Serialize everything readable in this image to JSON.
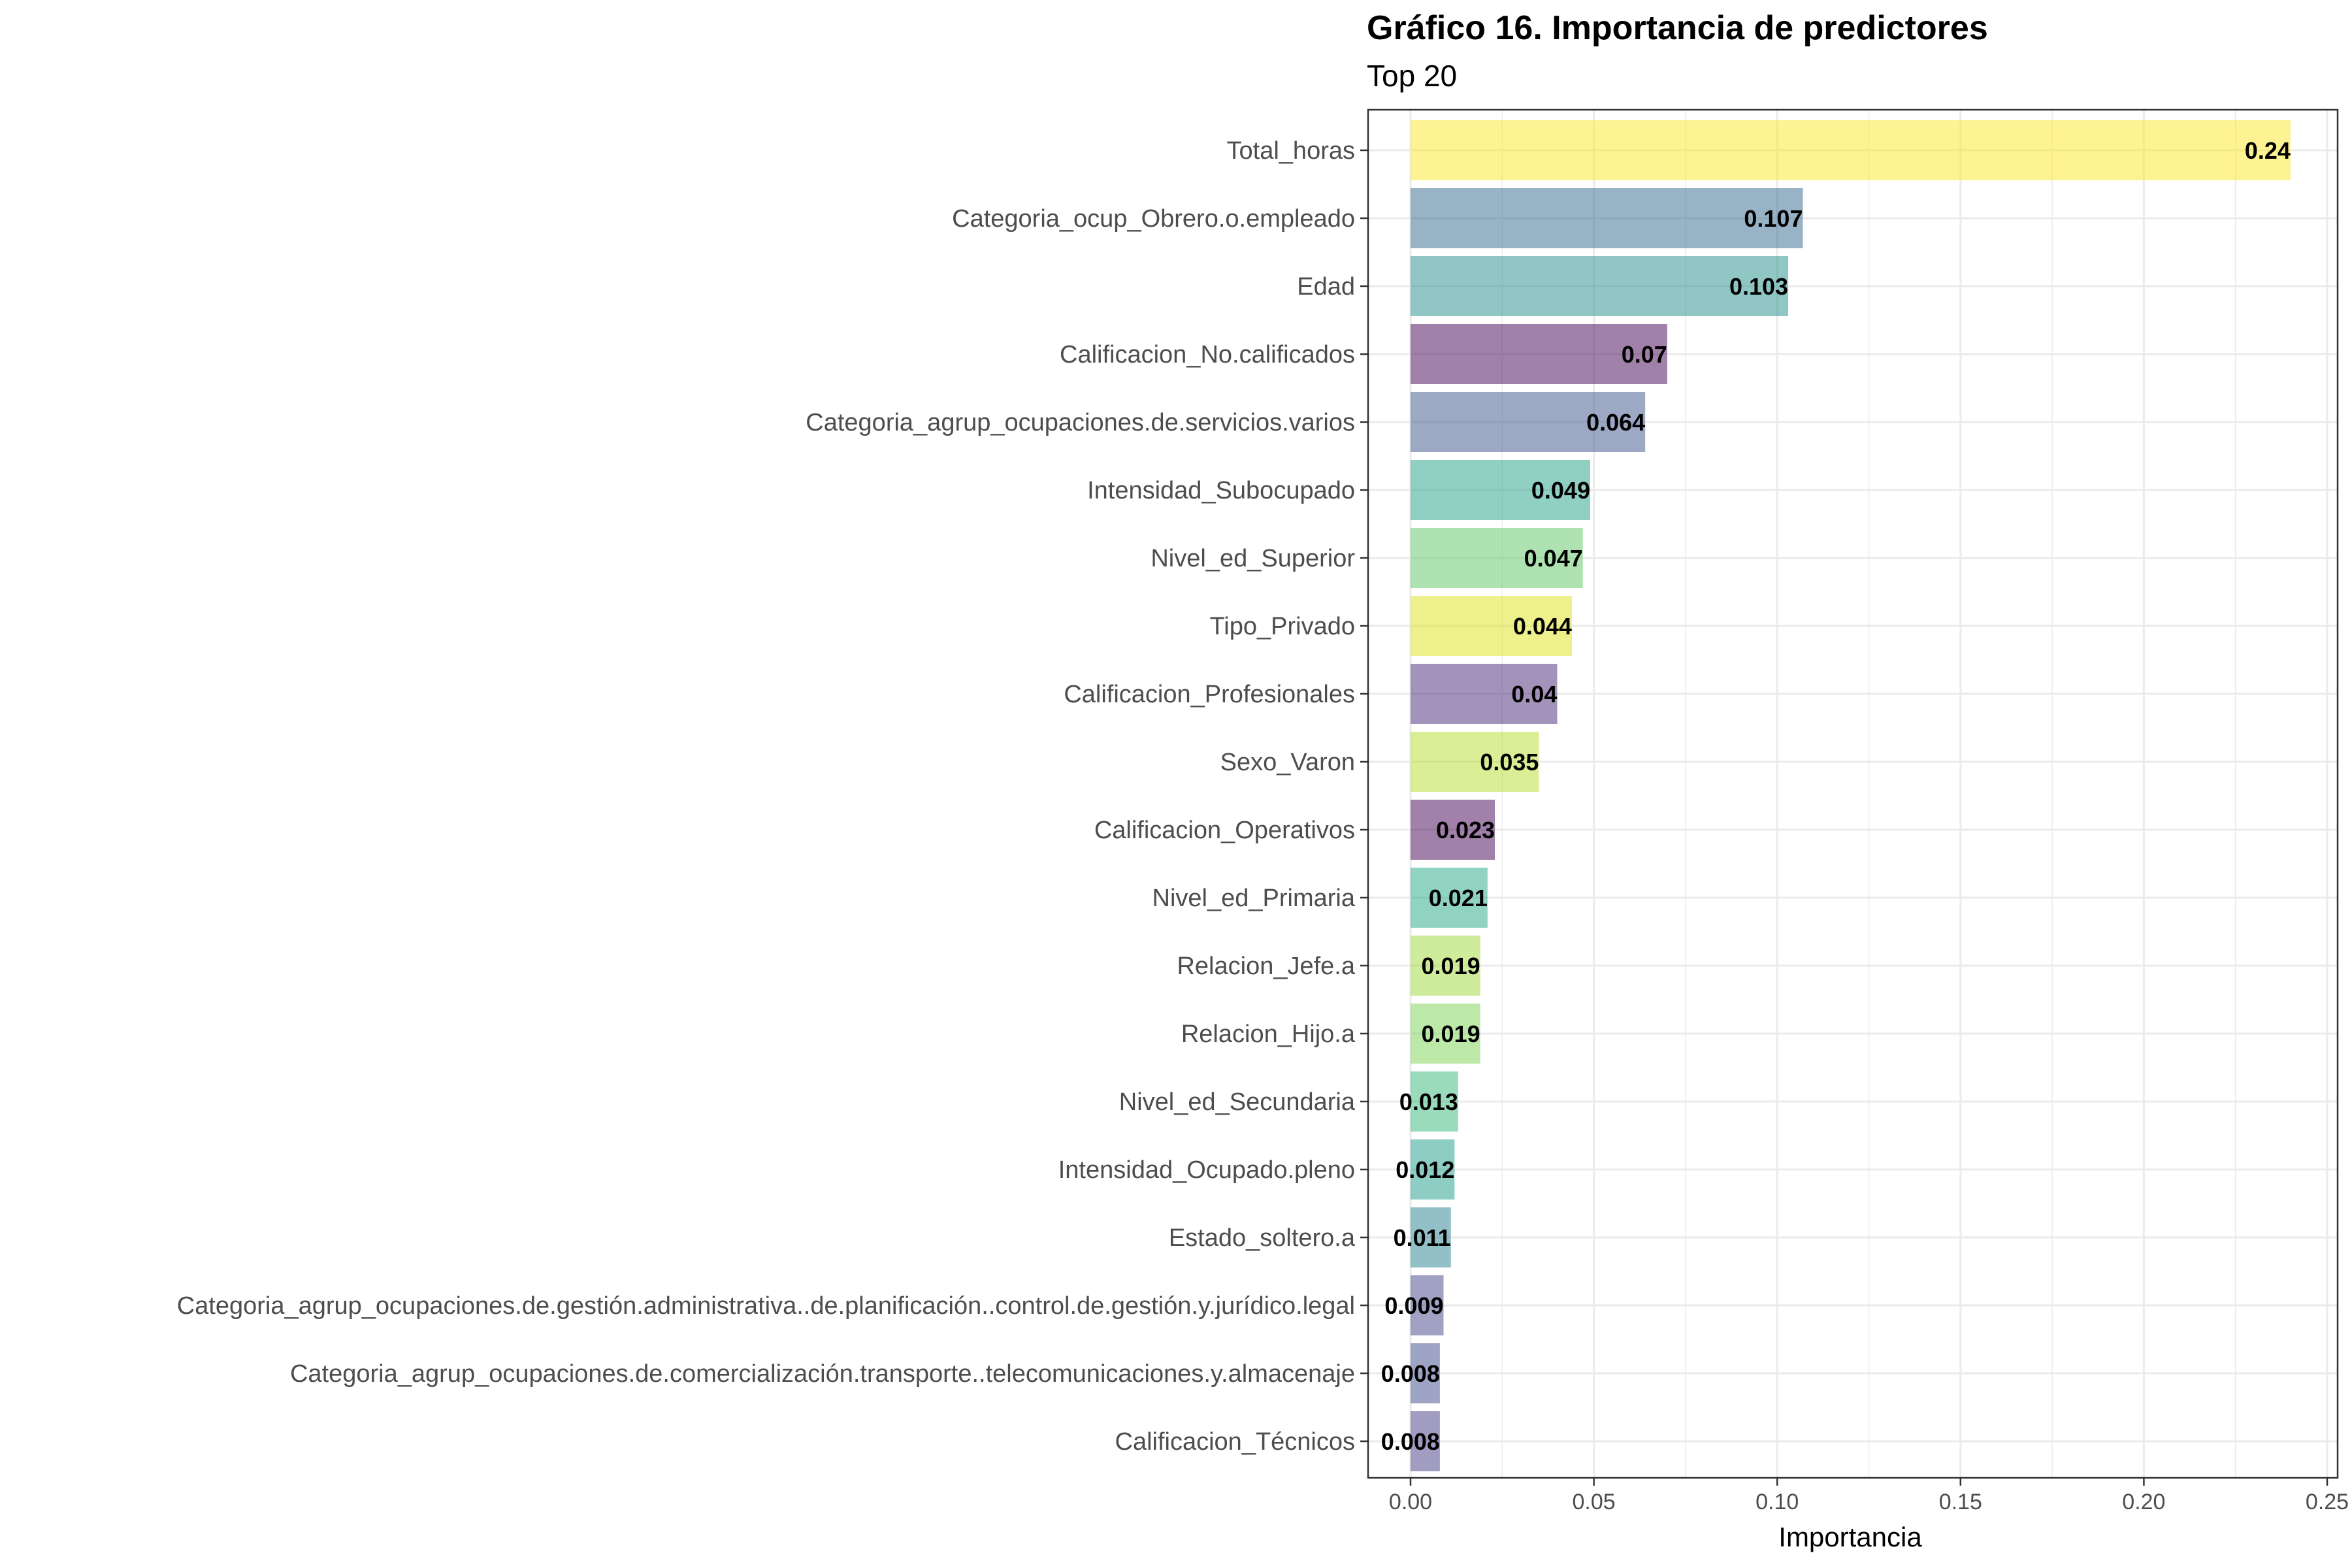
{
  "chart_data": {
    "type": "bar",
    "orientation": "horizontal",
    "title": "Gráfico 16. Importancia de predictores",
    "subtitle": "Top 20",
    "xlabel": "Importancia",
    "ylabel": "",
    "xlim": [
      0,
      0.25
    ],
    "xticks": [
      0,
      0.05,
      0.1,
      0.15,
      0.2,
      0.25
    ],
    "xtick_labels": [
      "0.00",
      "0.05",
      "0.10",
      "0.15",
      "0.20",
      "0.25"
    ],
    "grid": true,
    "legend": "none",
    "categories": [
      "Total_horas",
      "Categoria_ocup_Obrero.o.empleado",
      "Edad",
      "Calificacion_No.calificados",
      "Categoria_agrup_ocupaciones.de.servicios.varios",
      "Intensidad_Subocupado",
      "Nivel_ed_Superior",
      "Tipo_Privado",
      "Calificacion_Profesionales",
      "Sexo_Varon",
      "Calificacion_Operativos",
      "Nivel_ed_Primaria",
      "Relacion_Jefe.a",
      "Relacion_Hijo.a",
      "Nivel_ed_Secundaria",
      "Intensidad_Ocupado.pleno",
      "Estado_soltero.a",
      "Categoria_agrup_ocupaciones.de.gestión.administrativa..de.planificación..control.de.gestión.y.jurídico.legal",
      "Categoria_agrup_ocupaciones.de.comercialización.transporte..telecomunicaciones.y.almacenaje",
      "Calificacion_Técnicos"
    ],
    "values": [
      0.24,
      0.107,
      0.103,
      0.07,
      0.064,
      0.049,
      0.047,
      0.044,
      0.04,
      0.035,
      0.023,
      0.021,
      0.019,
      0.019,
      0.013,
      0.012,
      0.011,
      0.009,
      0.008,
      0.008
    ],
    "value_labels": [
      "0.24",
      "0.107",
      "0.103",
      "0.07",
      "0.064",
      "0.049",
      "0.047",
      "0.044",
      "0.04",
      "0.035",
      "0.023",
      "0.021",
      "0.019",
      "0.019",
      "0.013",
      "0.012",
      "0.011",
      "0.009",
      "0.008",
      "0.008"
    ],
    "colors": [
      "#FDE725",
      "#31688E",
      "#21908C",
      "#440154",
      "#3B528B",
      "#1FA187",
      "#5DC863",
      "#DDE318",
      "#482878",
      "#B5DE2B",
      "#440154",
      "#22A884",
      "#A0DA39",
      "#7AD151",
      "#35B779",
      "#1E9B8A",
      "#26828E",
      "#414487",
      "#3E4A89",
      "#443A83"
    ],
    "bar_opacity": 0.5
  }
}
